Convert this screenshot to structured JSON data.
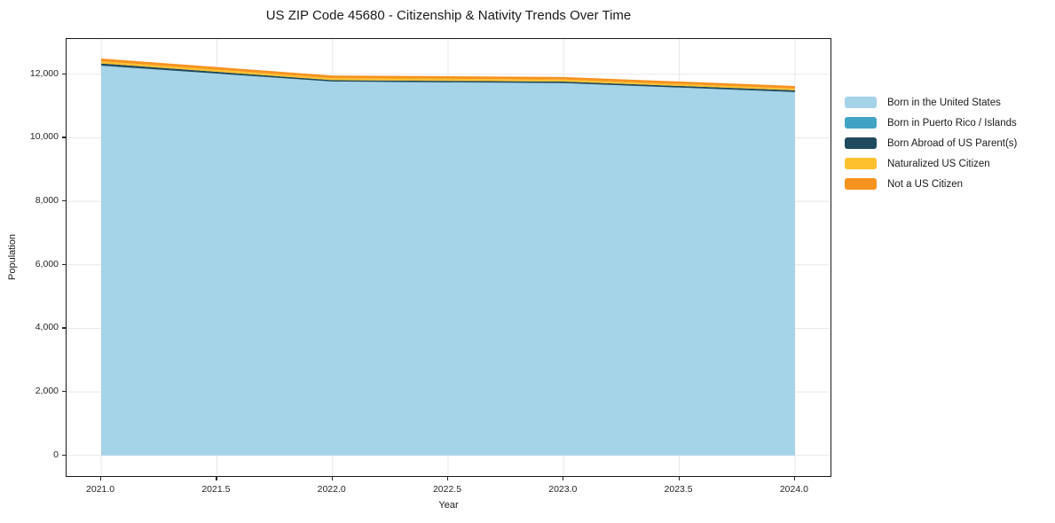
{
  "chart_data": {
    "type": "area",
    "stacked": true,
    "title": "US ZIP Code 45680 - Citizenship & Nativity Trends Over Time",
    "xlabel": "Year",
    "ylabel": "Population",
    "x": [
      2021,
      2022,
      2023,
      2024
    ],
    "series": [
      {
        "name": "Born in the United States",
        "color": "#a5d3e8",
        "values": [
          12270,
          11770,
          11720,
          11440
        ]
      },
      {
        "name": "Born in Puerto Rico / Islands",
        "color": "#41a3c3",
        "values": [
          0,
          0,
          0,
          0
        ]
      },
      {
        "name": "Born Abroad of US Parent(s)",
        "color": "#1f4a5e",
        "values": [
          70,
          45,
          50,
          55
        ]
      },
      {
        "name": "Naturalized US Citizen",
        "color": "#fcc12d",
        "values": [
          70,
          65,
          65,
          55
        ]
      },
      {
        "name": "Not a US Citizen",
        "color": "#f6921e",
        "values": [
          85,
          80,
          80,
          80
        ]
      }
    ],
    "xlim": [
      2020.85,
      2024.15
    ],
    "ylim": [
      -620,
      13110
    ],
    "xticks": [
      2021.0,
      2021.5,
      2022.0,
      2022.5,
      2023.0,
      2023.5,
      2024.0
    ],
    "yticks": [
      0,
      2000,
      4000,
      6000,
      8000,
      10000,
      12000
    ],
    "grid": true,
    "grid_color": "#e8e8e8",
    "legend_position": "right of plot, outside"
  }
}
